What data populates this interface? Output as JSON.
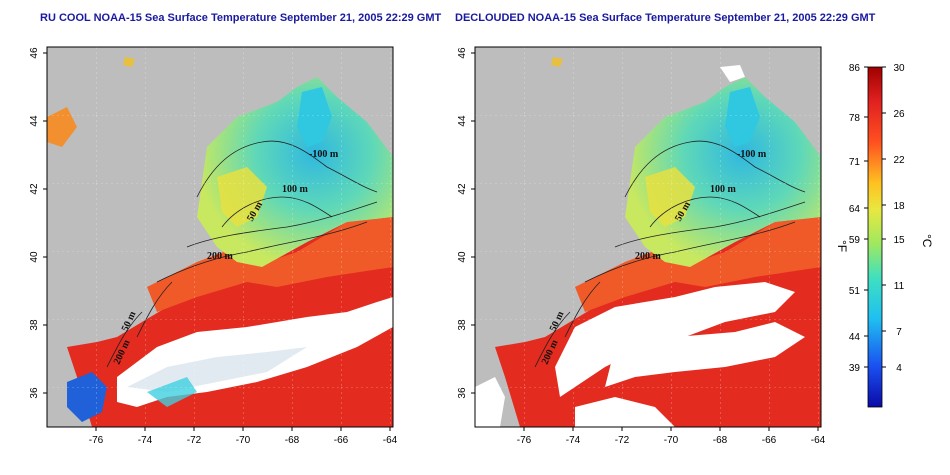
{
  "panels": [
    {
      "title": "RU COOL NOAA-15 Sea Surface Temperature September 21, 2005 22:29 GMT",
      "contour_labels": [
        "-100 m",
        "100 m",
        "50 m",
        "200 m",
        "50 m",
        "200 m"
      ]
    },
    {
      "title": "DECLOUDED NOAA-15 Sea Surface Temperature September 21, 2005 22:29 GMT",
      "contour_labels": [
        "-100 m",
        "100 m",
        "50 m",
        "200 m",
        "50 m",
        "200 m"
      ]
    }
  ],
  "axes": {
    "lon_ticks": [
      "-76",
      "-74",
      "-72",
      "-70",
      "-68",
      "-66",
      "-64"
    ],
    "lat_ticks": [
      "36",
      "38",
      "40",
      "42",
      "44",
      "46"
    ]
  },
  "colorbar": {
    "fahrenheit_ticks": [
      "86",
      "78",
      "71",
      "64",
      "59",
      "51",
      "44",
      "39"
    ],
    "celsius_ticks": [
      "30",
      "26",
      "22",
      "18",
      "15",
      "11",
      "7",
      "4"
    ],
    "fahrenheit_unit": "°F",
    "celsius_unit": "°C"
  },
  "colors": {
    "land": "#bdbdbd",
    "warm": "#e32b1f",
    "cool": "#3fd3c8",
    "cloud": "#ffffff",
    "title": "#1a1aa0"
  }
}
